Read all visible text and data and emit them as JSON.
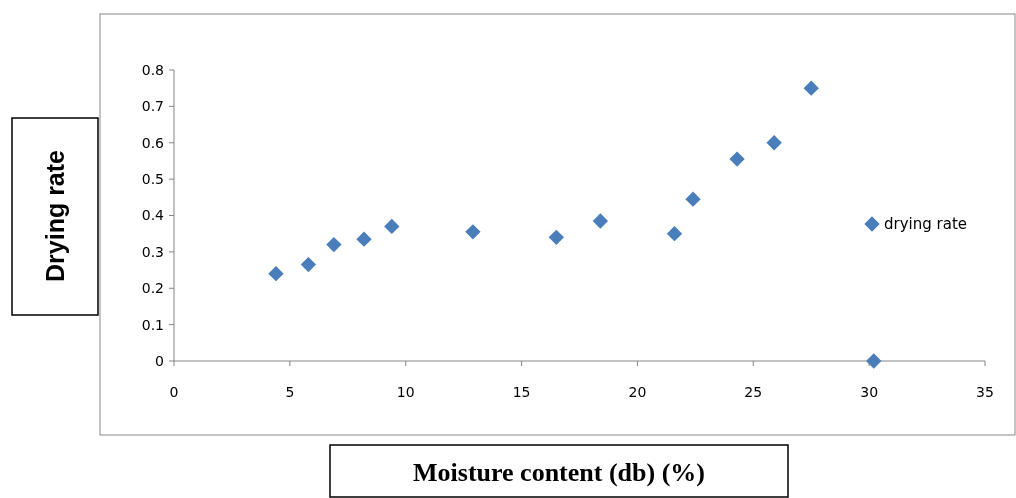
{
  "chart_data": {
    "type": "scatter",
    "xlabel": "Moisture content (db) (%)",
    "ylabel": "Drying rate",
    "xlim": [
      0,
      35
    ],
    "xticks": [
      0,
      5,
      10,
      15,
      20,
      25,
      30,
      35
    ],
    "ylim": [
      0,
      0.8
    ],
    "yticks": [
      0,
      0.1,
      0.2,
      0.3,
      0.4,
      0.5,
      0.6,
      0.7,
      0.8
    ],
    "marker": "diamond",
    "legend": "right",
    "grid": false,
    "series": [
      {
        "name": "drying rate",
        "color": "#4a7ebb",
        "x": [
          4.4,
          5.8,
          6.9,
          8.2,
          9.4,
          12.9,
          16.5,
          18.4,
          21.6,
          22.4,
          24.3,
          25.9,
          27.5,
          30.2
        ],
        "values": [
          0.24,
          0.265,
          0.32,
          0.335,
          0.37,
          0.355,
          0.34,
          0.385,
          0.35,
          0.445,
          0.555,
          0.6,
          0.75,
          0
        ]
      }
    ]
  }
}
